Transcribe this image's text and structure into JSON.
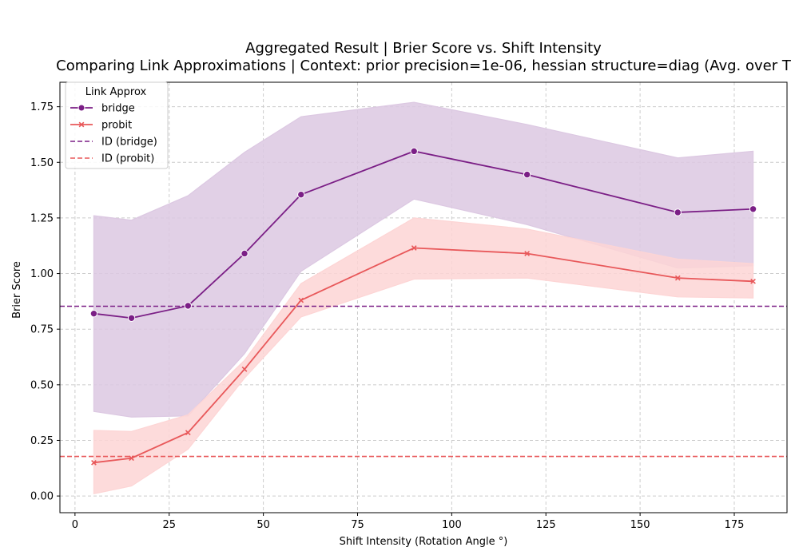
{
  "chart_data": {
    "type": "line",
    "title": "Aggregated Result | Brier Score vs. Shift Intensity",
    "subtitle": "Comparing Link Approximations | Context: prior precision=1e-06, hessian structure=diag (Avg. over T",
    "xlabel": "Shift Intensity (Rotation Angle °)",
    "ylabel": "Brier Score",
    "xlim": [
      -4,
      189
    ],
    "ylim": [
      -0.075,
      1.86
    ],
    "xticks": [
      0,
      25,
      50,
      75,
      100,
      125,
      150,
      175
    ],
    "xtick_labels": [
      "0",
      "25",
      "50",
      "75",
      "100",
      "125",
      "150",
      "175"
    ],
    "yticks": [
      0.0,
      0.25,
      0.5,
      0.75,
      1.0,
      1.25,
      1.5,
      1.75
    ],
    "ytick_labels": [
      "0.00",
      "0.25",
      "0.50",
      "0.75",
      "1.00",
      "1.25",
      "1.50",
      "1.75"
    ],
    "grid": true,
    "legend": {
      "title": "Link Approx",
      "placement": "top-left",
      "entries": [
        "bridge",
        "probit",
        "ID (bridge)",
        "ID (probit)"
      ]
    },
    "x": [
      5,
      15,
      30,
      45,
      60,
      90,
      120,
      160,
      180
    ],
    "series": [
      {
        "name": "bridge",
        "marker": "circle",
        "color": "#7b1f86",
        "values": [
          0.82,
          0.8,
          0.855,
          1.09,
          1.355,
          1.55,
          1.445,
          1.275,
          1.29
        ],
        "ci_lower": [
          0.38,
          0.355,
          0.36,
          0.64,
          1.01,
          1.335,
          1.22,
          1.025,
          1.035
        ],
        "ci_upper": [
          1.26,
          1.24,
          1.35,
          1.545,
          1.705,
          1.77,
          1.67,
          1.52,
          1.55
        ]
      },
      {
        "name": "probit",
        "marker": "x",
        "color": "#e8585a",
        "values": [
          0.15,
          0.17,
          0.285,
          0.57,
          0.88,
          1.115,
          1.09,
          0.98,
          0.965
        ],
        "ci_lower": [
          0.01,
          0.045,
          0.21,
          0.53,
          0.805,
          0.975,
          0.98,
          0.895,
          0.89
        ],
        "ci_upper": [
          0.295,
          0.29,
          0.365,
          0.61,
          0.955,
          1.25,
          1.2,
          1.065,
          1.045
        ]
      }
    ],
    "reference_lines": [
      {
        "name": "ID (bridge)",
        "y": 0.853,
        "color": "#7b1f86",
        "style": "dashed"
      },
      {
        "name": "ID (probit)",
        "y": 0.178,
        "color": "#e8585a",
        "style": "dashed"
      }
    ],
    "band_colors": {
      "bridge": "#dcc8e2",
      "probit": "#fdd5d5"
    }
  }
}
